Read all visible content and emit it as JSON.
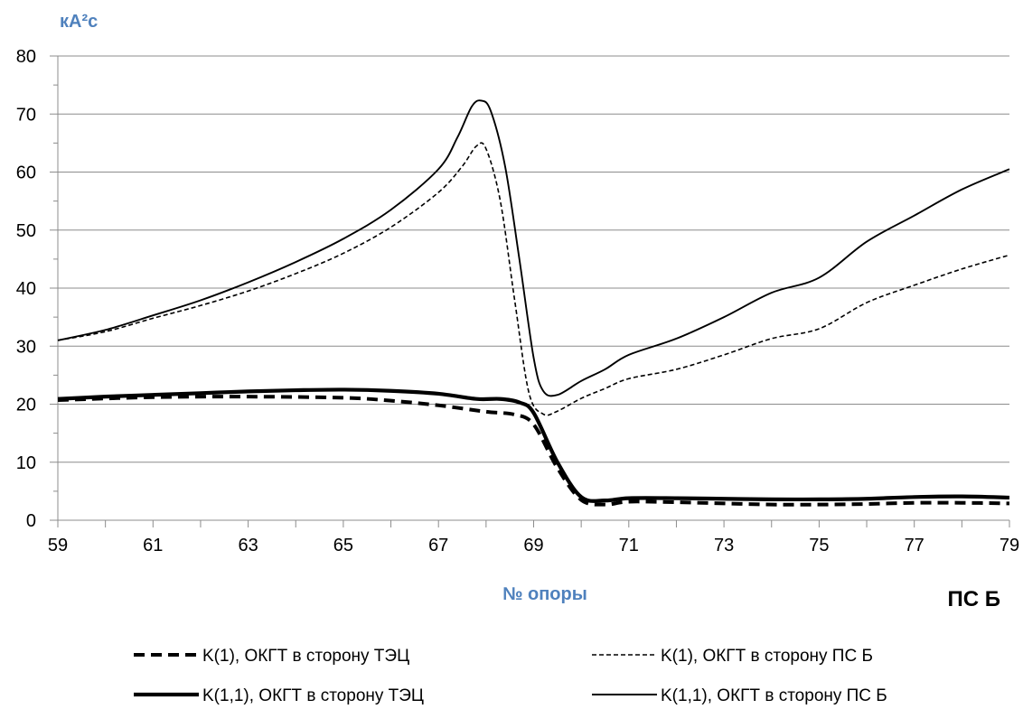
{
  "chart_data": {
    "type": "line",
    "ylabel": "кА²с",
    "xlabel": "№ опоры",
    "corner_label": "ПС Б",
    "xlim": [
      59,
      79
    ],
    "ylim": [
      0,
      80
    ],
    "x_ticks": [
      59,
      61,
      63,
      65,
      67,
      69,
      71,
      73,
      75,
      77,
      79
    ],
    "y_ticks": [
      0,
      10,
      20,
      30,
      40,
      50,
      60,
      70,
      80
    ],
    "grid": "horizontal",
    "legend_position": "bottom",
    "series": [
      {
        "name": "K(1), ОКГТ в сторону ТЭЦ",
        "style": "thick-dashed",
        "points": [
          [
            59,
            20.7
          ],
          [
            61,
            21.2
          ],
          [
            63,
            21.3
          ],
          [
            65,
            21.1
          ],
          [
            66,
            20.6
          ],
          [
            67,
            19.8
          ],
          [
            68,
            18.7
          ],
          [
            68.6,
            18.2
          ],
          [
            69,
            16.5
          ],
          [
            69.5,
            9
          ],
          [
            70,
            3.5
          ],
          [
            70.5,
            2.7
          ],
          [
            71,
            3.2
          ],
          [
            72,
            3.1
          ],
          [
            73,
            2.9
          ],
          [
            74,
            2.7
          ],
          [
            75,
            2.7
          ],
          [
            76,
            2.8
          ],
          [
            77,
            3.0
          ],
          [
            78,
            3.0
          ],
          [
            79,
            2.9
          ]
        ]
      },
      {
        "name": "K(1), ОКГТ в сторону ПС Б",
        "style": "thin-dashed",
        "points": [
          [
            59,
            31
          ],
          [
            60,
            32.5
          ],
          [
            61,
            34.8
          ],
          [
            62,
            37
          ],
          [
            63,
            39.5
          ],
          [
            64,
            42.5
          ],
          [
            65,
            46
          ],
          [
            66,
            50.5
          ],
          [
            67,
            56.5
          ],
          [
            67.5,
            61
          ],
          [
            67.8,
            64.5
          ],
          [
            68,
            64
          ],
          [
            68.3,
            55
          ],
          [
            68.6,
            38
          ],
          [
            68.9,
            22
          ],
          [
            69.2,
            18.3
          ],
          [
            69.5,
            18.8
          ],
          [
            70,
            21
          ],
          [
            70.5,
            22.7
          ],
          [
            71,
            24.4
          ],
          [
            72,
            26
          ],
          [
            73,
            28.5
          ],
          [
            74,
            31.3
          ],
          [
            75,
            33
          ],
          [
            76,
            37.5
          ],
          [
            77,
            40.5
          ],
          [
            78,
            43.3
          ],
          [
            79,
            45.7
          ]
        ]
      },
      {
        "name": "K(1,1), ОКГТ в сторону ТЭЦ",
        "style": "thick-solid",
        "points": [
          [
            59,
            20.9
          ],
          [
            60,
            21.3
          ],
          [
            61,
            21.6
          ],
          [
            62,
            21.9
          ],
          [
            63,
            22.2
          ],
          [
            64,
            22.4
          ],
          [
            65,
            22.5
          ],
          [
            66,
            22.3
          ],
          [
            67,
            21.8
          ],
          [
            67.8,
            20.9
          ],
          [
            68.3,
            20.9
          ],
          [
            68.7,
            20.3
          ],
          [
            69,
            18.5
          ],
          [
            69.5,
            10
          ],
          [
            70,
            4
          ],
          [
            70.5,
            3.4
          ],
          [
            71,
            3.8
          ],
          [
            72,
            3.8
          ],
          [
            73,
            3.7
          ],
          [
            74,
            3.6
          ],
          [
            75,
            3.6
          ],
          [
            76,
            3.7
          ],
          [
            77,
            4.0
          ],
          [
            78,
            4.1
          ],
          [
            79,
            3.9
          ]
        ]
      },
      {
        "name": "K(1,1), ОКГТ в сторону ПС Б",
        "style": "thin-solid",
        "points": [
          [
            59,
            31
          ],
          [
            60,
            32.8
          ],
          [
            61,
            35.3
          ],
          [
            62,
            37.9
          ],
          [
            63,
            41
          ],
          [
            64,
            44.5
          ],
          [
            65,
            48.5
          ],
          [
            66,
            53.5
          ],
          [
            67,
            60.5
          ],
          [
            67.4,
            66
          ],
          [
            67.7,
            71.3
          ],
          [
            67.9,
            72.3
          ],
          [
            68.1,
            70.5
          ],
          [
            68.4,
            61
          ],
          [
            68.7,
            45
          ],
          [
            69,
            28
          ],
          [
            69.2,
            22.3
          ],
          [
            69.5,
            21.6
          ],
          [
            70,
            24
          ],
          [
            70.5,
            26
          ],
          [
            71,
            28.5
          ],
          [
            72,
            31.3
          ],
          [
            73,
            35
          ],
          [
            74,
            39.2
          ],
          [
            75,
            41.8
          ],
          [
            76,
            48
          ],
          [
            77,
            52.5
          ],
          [
            78,
            57
          ],
          [
            79,
            60.5
          ]
        ]
      }
    ]
  }
}
